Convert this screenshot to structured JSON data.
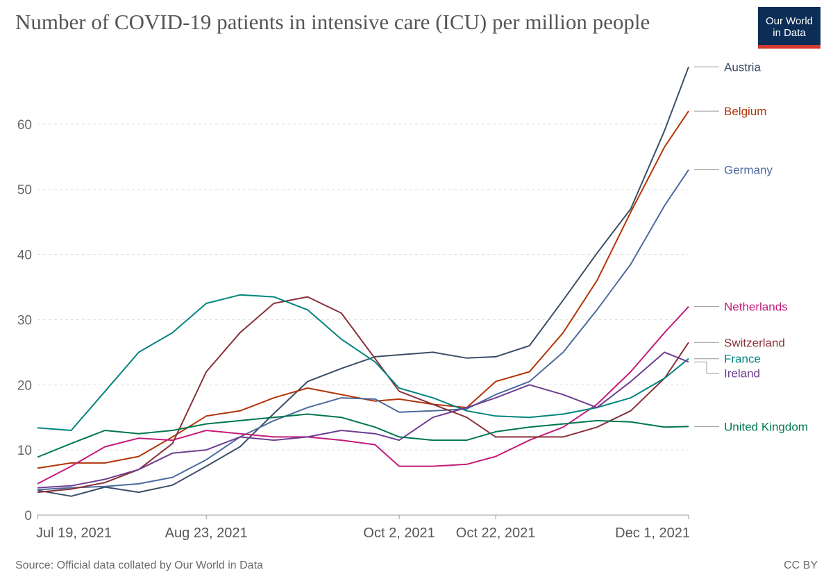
{
  "title": "Number of COVID-19 patients in intensive care (ICU) per million people",
  "logo": {
    "line1": "Our World",
    "line2": "in Data",
    "bg_color": "#0c2d56",
    "accent_color": "#d5392f"
  },
  "source": "Source: Official data collated by Our World in Data",
  "license": "CC BY",
  "chart_data": {
    "type": "line",
    "title": "Number of COVID-19 patients in intensive care (ICU) per million people",
    "xlabel": "",
    "ylabel": "",
    "x_range": [
      "2021-07-19",
      "2021-12-01"
    ],
    "ylim": [
      0,
      70
    ],
    "y_ticks": [
      0,
      10,
      20,
      30,
      40,
      50,
      60
    ],
    "x_ticks": [
      {
        "date": "2021-07-19",
        "label": "Jul 19, 2021"
      },
      {
        "date": "2021-08-23",
        "label": "Aug 23, 2021"
      },
      {
        "date": "2021-10-02",
        "label": "Oct 2, 2021"
      },
      {
        "date": "2021-10-22",
        "label": "Oct 22, 2021"
      },
      {
        "date": "2021-12-01",
        "label": "Dec 1, 2021"
      }
    ],
    "grid": "horizontal dashed",
    "legend": "right, labels at line ends",
    "series": [
      {
        "name": "Austria",
        "color": "#3c4e66",
        "points": [
          [
            "2021-07-19",
            3.8
          ],
          [
            "2021-07-26",
            2.9
          ],
          [
            "2021-08-02",
            4.3
          ],
          [
            "2021-08-09",
            3.5
          ],
          [
            "2021-08-16",
            4.6
          ],
          [
            "2021-08-23",
            7.5
          ],
          [
            "2021-08-30",
            10.5
          ],
          [
            "2021-09-06",
            15.6
          ],
          [
            "2021-09-13",
            20.5
          ],
          [
            "2021-09-20",
            22.5
          ],
          [
            "2021-09-27",
            24.3
          ],
          [
            "2021-10-02",
            24.6
          ],
          [
            "2021-10-09",
            25.0
          ],
          [
            "2021-10-16",
            24.1
          ],
          [
            "2021-10-22",
            24.3
          ],
          [
            "2021-10-29",
            26.0
          ],
          [
            "2021-11-05",
            33.0
          ],
          [
            "2021-11-12",
            40.2
          ],
          [
            "2021-11-19",
            47.0
          ],
          [
            "2021-11-26",
            59.0
          ],
          [
            "2021-12-01",
            68.8
          ]
        ]
      },
      {
        "name": "Belgium",
        "color": "#b13507",
        "points": [
          [
            "2021-07-19",
            7.2
          ],
          [
            "2021-07-26",
            8.0
          ],
          [
            "2021-08-02",
            8.0
          ],
          [
            "2021-08-09",
            9.0
          ],
          [
            "2021-08-16",
            12.0
          ],
          [
            "2021-08-23",
            15.2
          ],
          [
            "2021-08-30",
            16.0
          ],
          [
            "2021-09-06",
            18.0
          ],
          [
            "2021-09-13",
            19.5
          ],
          [
            "2021-09-20",
            18.5
          ],
          [
            "2021-09-27",
            17.5
          ],
          [
            "2021-10-02",
            17.8
          ],
          [
            "2021-10-09",
            17.0
          ],
          [
            "2021-10-16",
            16.5
          ],
          [
            "2021-10-22",
            20.5
          ],
          [
            "2021-10-29",
            22.0
          ],
          [
            "2021-11-05",
            28.0
          ],
          [
            "2021-11-12",
            36.0
          ],
          [
            "2021-11-19",
            46.5
          ],
          [
            "2021-11-26",
            56.5
          ],
          [
            "2021-12-01",
            62.0
          ]
        ]
      },
      {
        "name": "Germany",
        "color": "#4c6a9c",
        "points": [
          [
            "2021-07-19",
            3.9
          ],
          [
            "2021-07-26",
            4.2
          ],
          [
            "2021-08-02",
            4.4
          ],
          [
            "2021-08-09",
            4.8
          ],
          [
            "2021-08-16",
            5.8
          ],
          [
            "2021-08-23",
            8.5
          ],
          [
            "2021-08-30",
            12.0
          ],
          [
            "2021-09-06",
            14.5
          ],
          [
            "2021-09-13",
            16.5
          ],
          [
            "2021-09-20",
            18.0
          ],
          [
            "2021-09-27",
            17.8
          ],
          [
            "2021-10-02",
            15.8
          ],
          [
            "2021-10-09",
            16.0
          ],
          [
            "2021-10-16",
            16.3
          ],
          [
            "2021-10-22",
            18.5
          ],
          [
            "2021-10-29",
            20.5
          ],
          [
            "2021-11-05",
            25.0
          ],
          [
            "2021-11-12",
            31.5
          ],
          [
            "2021-11-19",
            38.5
          ],
          [
            "2021-11-26",
            47.5
          ],
          [
            "2021-12-01",
            53.0
          ]
        ]
      },
      {
        "name": "Netherlands",
        "color": "#c41b7a",
        "points": [
          [
            "2021-07-19",
            4.8
          ],
          [
            "2021-07-26",
            7.5
          ],
          [
            "2021-08-02",
            10.5
          ],
          [
            "2021-08-09",
            11.8
          ],
          [
            "2021-08-16",
            11.5
          ],
          [
            "2021-08-23",
            13.0
          ],
          [
            "2021-08-30",
            12.5
          ],
          [
            "2021-09-06",
            12.0
          ],
          [
            "2021-09-13",
            12.0
          ],
          [
            "2021-09-20",
            11.5
          ],
          [
            "2021-09-27",
            10.8
          ],
          [
            "2021-10-02",
            7.5
          ],
          [
            "2021-10-09",
            7.5
          ],
          [
            "2021-10-16",
            7.8
          ],
          [
            "2021-10-22",
            9.0
          ],
          [
            "2021-10-29",
            11.5
          ],
          [
            "2021-11-05",
            13.5
          ],
          [
            "2021-11-12",
            17.0
          ],
          [
            "2021-11-19",
            22.0
          ],
          [
            "2021-11-26",
            28.0
          ],
          [
            "2021-12-01",
            32.0
          ]
        ]
      },
      {
        "name": "Switzerland",
        "color": "#883039",
        "points": [
          [
            "2021-07-19",
            3.5
          ],
          [
            "2021-07-26",
            4.0
          ],
          [
            "2021-08-02",
            5.0
          ],
          [
            "2021-08-09",
            7.0
          ],
          [
            "2021-08-16",
            11.0
          ],
          [
            "2021-08-23",
            22.0
          ],
          [
            "2021-08-30",
            28.0
          ],
          [
            "2021-09-06",
            32.5
          ],
          [
            "2021-09-13",
            33.5
          ],
          [
            "2021-09-20",
            31.0
          ],
          [
            "2021-09-27",
            24.0
          ],
          [
            "2021-10-02",
            19.0
          ],
          [
            "2021-10-09",
            17.0
          ],
          [
            "2021-10-16",
            15.0
          ],
          [
            "2021-10-22",
            12.0
          ],
          [
            "2021-10-29",
            12.0
          ],
          [
            "2021-11-05",
            12.0
          ],
          [
            "2021-11-12",
            13.5
          ],
          [
            "2021-11-19",
            16.0
          ],
          [
            "2021-11-26",
            21.0
          ],
          [
            "2021-12-01",
            26.5
          ]
        ]
      },
      {
        "name": "France",
        "color": "#00847e",
        "points": [
          [
            "2021-07-19",
            13.4
          ],
          [
            "2021-07-26",
            13.0
          ],
          [
            "2021-08-02",
            19.0
          ],
          [
            "2021-08-09",
            25.0
          ],
          [
            "2021-08-16",
            28.0
          ],
          [
            "2021-08-23",
            32.5
          ],
          [
            "2021-08-30",
            33.8
          ],
          [
            "2021-09-06",
            33.5
          ],
          [
            "2021-09-13",
            31.5
          ],
          [
            "2021-09-20",
            27.0
          ],
          [
            "2021-09-27",
            23.5
          ],
          [
            "2021-10-02",
            19.5
          ],
          [
            "2021-10-09",
            18.0
          ],
          [
            "2021-10-16",
            16.0
          ],
          [
            "2021-10-22",
            15.2
          ],
          [
            "2021-10-29",
            15.0
          ],
          [
            "2021-11-05",
            15.5
          ],
          [
            "2021-11-12",
            16.5
          ],
          [
            "2021-11-19",
            18.0
          ],
          [
            "2021-11-26",
            21.0
          ],
          [
            "2021-12-01",
            24.0
          ]
        ]
      },
      {
        "name": "Ireland",
        "color": "#6d3e91",
        "points": [
          [
            "2021-07-19",
            4.2
          ],
          [
            "2021-07-26",
            4.5
          ],
          [
            "2021-08-02",
            5.5
          ],
          [
            "2021-08-09",
            7.0
          ],
          [
            "2021-08-16",
            9.5
          ],
          [
            "2021-08-23",
            10.0
          ],
          [
            "2021-08-30",
            12.0
          ],
          [
            "2021-09-06",
            11.5
          ],
          [
            "2021-09-13",
            12.0
          ],
          [
            "2021-09-20",
            13.0
          ],
          [
            "2021-09-27",
            12.5
          ],
          [
            "2021-10-02",
            11.5
          ],
          [
            "2021-10-09",
            15.0
          ],
          [
            "2021-10-16",
            16.5
          ],
          [
            "2021-10-22",
            18.0
          ],
          [
            "2021-10-29",
            20.0
          ],
          [
            "2021-11-05",
            18.5
          ],
          [
            "2021-11-12",
            16.5
          ],
          [
            "2021-11-19",
            20.5
          ],
          [
            "2021-11-26",
            25.0
          ],
          [
            "2021-12-01",
            23.5
          ]
        ]
      },
      {
        "name": "United Kingdom",
        "color": "#00764f",
        "points": [
          [
            "2021-07-19",
            8.9
          ],
          [
            "2021-07-26",
            11.0
          ],
          [
            "2021-08-02",
            13.0
          ],
          [
            "2021-08-09",
            12.5
          ],
          [
            "2021-08-16",
            13.0
          ],
          [
            "2021-08-23",
            14.0
          ],
          [
            "2021-08-30",
            14.5
          ],
          [
            "2021-09-06",
            15.0
          ],
          [
            "2021-09-13",
            15.5
          ],
          [
            "2021-09-20",
            15.0
          ],
          [
            "2021-09-27",
            13.5
          ],
          [
            "2021-10-02",
            12.0
          ],
          [
            "2021-10-09",
            11.5
          ],
          [
            "2021-10-16",
            11.5
          ],
          [
            "2021-10-22",
            12.8
          ],
          [
            "2021-10-29",
            13.5
          ],
          [
            "2021-11-05",
            14.0
          ],
          [
            "2021-11-12",
            14.5
          ],
          [
            "2021-11-19",
            14.3
          ],
          [
            "2021-11-26",
            13.5
          ],
          [
            "2021-12-01",
            13.6
          ]
        ]
      }
    ]
  }
}
